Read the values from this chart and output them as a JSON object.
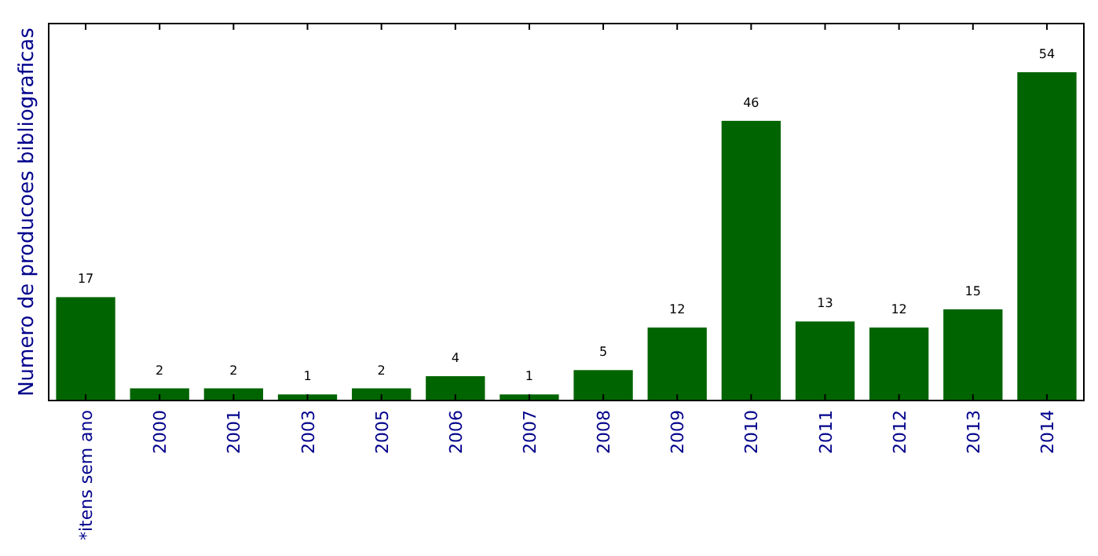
{
  "chart_data": {
    "type": "bar",
    "ylabel": "Numero de producoes bibliograficas",
    "categories": [
      "*itens sem ano",
      "2000",
      "2001",
      "2003",
      "2005",
      "2006",
      "2007",
      "2008",
      "2009",
      "2010",
      "2011",
      "2012",
      "2013",
      "2014"
    ],
    "values": [
      17,
      2,
      2,
      1,
      2,
      4,
      1,
      5,
      12,
      46,
      13,
      12,
      15,
      54
    ],
    "color": "#006400",
    "ylim": [
      0,
      62
    ],
    "data_labels": true,
    "tick_labels": "x"
  }
}
